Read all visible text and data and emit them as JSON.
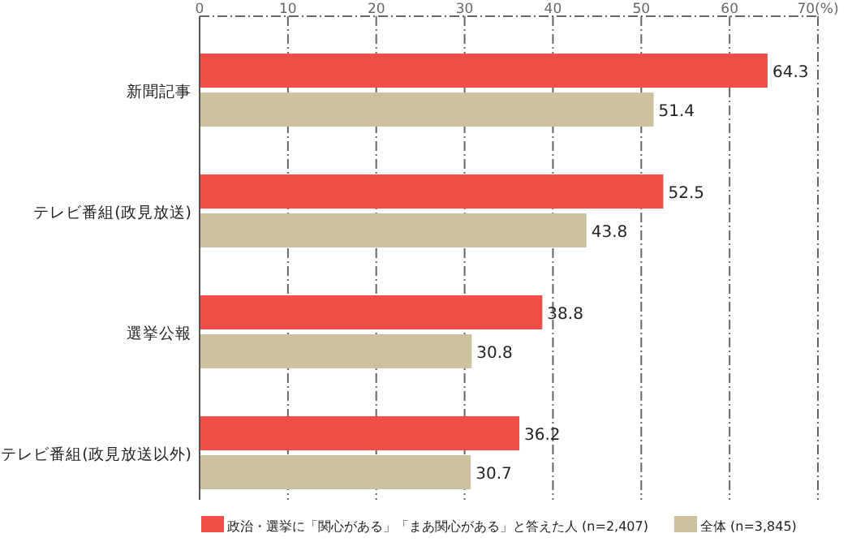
{
  "chart_data": {
    "type": "bar",
    "orientation": "horizontal",
    "categories": [
      "新聞記事",
      "テレビ番組(政見放送)",
      "選挙公報",
      "テレビ番組(政見放送以外)"
    ],
    "series": [
      {
        "name": "政治・選挙に「関心がある」「まあ関心がある」と答えた人 (n=2,407)",
        "color": "#ef4f48",
        "values": [
          64.3,
          52.5,
          38.8,
          36.2
        ]
      },
      {
        "name": "全体 (n=3,845)",
        "color": "#cdc19e",
        "values": [
          51.4,
          43.8,
          30.8,
          30.7
        ]
      }
    ],
    "xlim": [
      0,
      70
    ],
    "xticks": [
      0,
      10,
      20,
      30,
      40,
      50,
      60,
      {
        "value": 70,
        "label": "70(%)"
      }
    ],
    "grid": "x",
    "legend": "bottom",
    "data_labels": true
  }
}
